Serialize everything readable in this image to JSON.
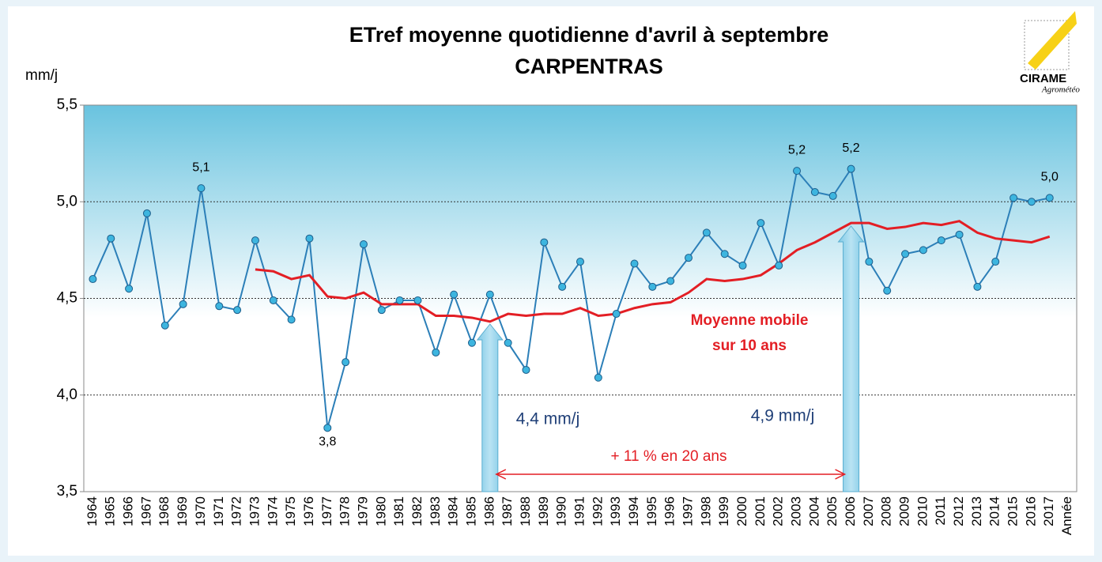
{
  "chart_data": {
    "type": "line",
    "title": [
      "ETref moyenne quotidienne d'avril à septembre",
      "CARPENTRAS"
    ],
    "y_axis_label": "mm/j",
    "x_axis_label": "Année",
    "logo": [
      "CIRAME",
      "Agrométéo"
    ],
    "categories": [
      "1964",
      "1965",
      "1966",
      "1967",
      "1968",
      "1969",
      "1970",
      "1971",
      "1972",
      "1973",
      "1974",
      "1975",
      "1976",
      "1977",
      "1978",
      "1979",
      "1980",
      "1981",
      "1982",
      "1983",
      "1984",
      "1985",
      "1986",
      "1987",
      "1988",
      "1989",
      "1990",
      "1991",
      "1992",
      "1993",
      "1994",
      "1995",
      "1996",
      "1997",
      "1998",
      "1999",
      "2000",
      "2001",
      "2002",
      "2003",
      "2004",
      "2005",
      "2006",
      "2007",
      "2008",
      "2009",
      "2010",
      "2011",
      "2012",
      "2013",
      "2014",
      "2015",
      "2016",
      "2017"
    ],
    "series": [
      {
        "color": "#2c7fb8",
        "marker_color": "#3db5df",
        "values": [
          4.6,
          4.81,
          4.55,
          4.94,
          4.36,
          4.47,
          5.07,
          4.46,
          4.44,
          4.8,
          4.49,
          4.39,
          4.81,
          3.83,
          4.17,
          4.78,
          4.44,
          4.49,
          4.49,
          4.22,
          4.52,
          4.27,
          4.52,
          4.27,
          4.13,
          4.79,
          4.56,
          4.69,
          4.09,
          4.42,
          4.68,
          4.56,
          4.59,
          4.71,
          4.84,
          4.73,
          4.67,
          4.89,
          4.67,
          5.16,
          5.05,
          5.03,
          5.17,
          4.69,
          4.54,
          4.73,
          4.75,
          4.8,
          4.83,
          4.56,
          4.69,
          5.02,
          5.0,
          5.02
        ],
        "value_labels": [
          null,
          null,
          null,
          null,
          null,
          null,
          "5,1",
          null,
          null,
          null,
          null,
          null,
          null,
          "3,8",
          null,
          null,
          null,
          null,
          null,
          null,
          null,
          null,
          null,
          null,
          null,
          null,
          null,
          null,
          null,
          null,
          null,
          null,
          null,
          null,
          null,
          null,
          null,
          null,
          null,
          "5,2",
          null,
          null,
          "5,2",
          null,
          null,
          null,
          null,
          null,
          null,
          null,
          null,
          null,
          null,
          "5,0"
        ]
      },
      {
        "color": "#e31e24",
        "values": [
          null,
          null,
          null,
          null,
          null,
          null,
          null,
          null,
          null,
          4.65,
          4.64,
          4.6,
          4.62,
          4.51,
          4.5,
          4.53,
          4.47,
          4.47,
          4.47,
          4.41,
          4.41,
          4.4,
          4.38,
          4.42,
          4.41,
          4.42,
          4.42,
          4.45,
          4.41,
          4.42,
          4.45,
          4.47,
          4.48,
          4.53,
          4.6,
          4.59,
          4.6,
          4.62,
          4.68,
          4.75,
          4.79,
          4.84,
          4.89,
          4.89,
          4.86,
          4.87,
          4.89,
          4.88,
          4.9,
          4.84,
          4.81,
          4.8,
          4.79,
          4.82
        ]
      }
    ],
    "ylim": [
      3.5,
      5.5
    ],
    "yticks": [
      {
        "value": 3.5,
        "label": "3,5"
      },
      {
        "value": 4.0,
        "label": "4,0"
      },
      {
        "value": 4.5,
        "label": "4,5"
      },
      {
        "value": 5.0,
        "label": "5,0"
      },
      {
        "value": 5.5,
        "label": "5,5"
      }
    ],
    "grid": true,
    "annotations": {
      "moving_average": [
        "Moyenne mobile",
        "sur 10 ans"
      ],
      "start_value": "4,4 mm/j",
      "end_value": "4,9 mm/j",
      "change": "+ 11 % en 20 ans"
    }
  }
}
